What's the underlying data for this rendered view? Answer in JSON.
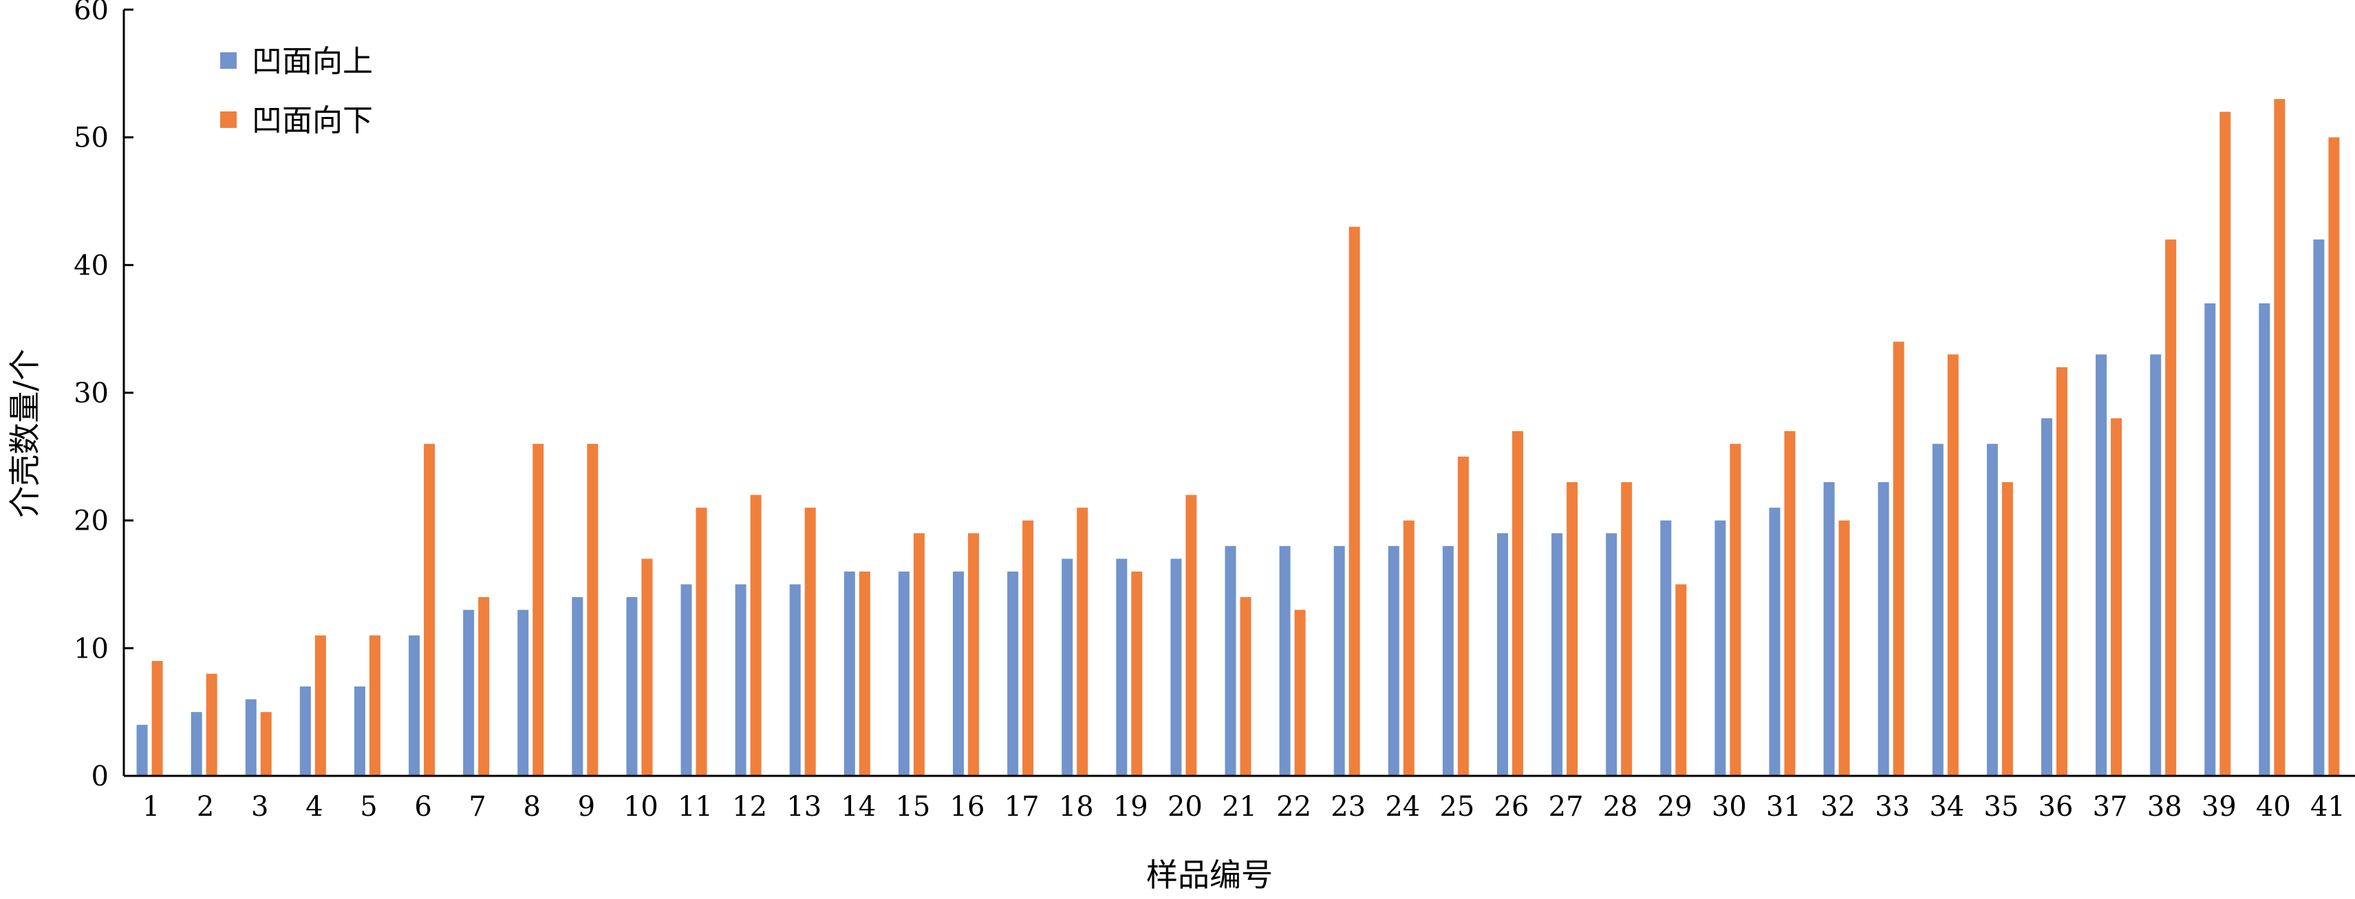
{
  "chart_data": {
    "type": "bar",
    "title": "",
    "xlabel": "样品编号",
    "ylabel": "介壳数量/个",
    "ylim": [
      0,
      60
    ],
    "yticks": [
      0,
      10,
      20,
      30,
      40,
      50,
      60
    ],
    "grid": false,
    "legend_position": "top-left",
    "categories": [
      "1",
      "2",
      "3",
      "4",
      "5",
      "6",
      "7",
      "8",
      "9",
      "10",
      "11",
      "12",
      "13",
      "14",
      "15",
      "16",
      "17",
      "18",
      "19",
      "20",
      "21",
      "22",
      "23",
      "24",
      "25",
      "26",
      "27",
      "28",
      "29",
      "30",
      "31",
      "32",
      "33",
      "34",
      "35",
      "36",
      "37",
      "38",
      "39",
      "40",
      "41"
    ],
    "series": [
      {
        "name": "凹面向上",
        "color": "#7293CB",
        "values": [
          4,
          5,
          6,
          7,
          7,
          11,
          13,
          13,
          14,
          14,
          15,
          15,
          15,
          16,
          16,
          16,
          16,
          17,
          17,
          17,
          18,
          18,
          18,
          18,
          18,
          19,
          19,
          19,
          20,
          20,
          21,
          23,
          23,
          26,
          26,
          28,
          33,
          33,
          37,
          37,
          42
        ]
      },
      {
        "name": "凹面向下",
        "color": "#F07F3C",
        "values": [
          9,
          8,
          5,
          11,
          11,
          26,
          14,
          26,
          26,
          17,
          21,
          22,
          21,
          16,
          19,
          19,
          20,
          21,
          16,
          22,
          14,
          13,
          43,
          20,
          25,
          27,
          23,
          23,
          15,
          26,
          27,
          20,
          34,
          33,
          23,
          32,
          28,
          42,
          52,
          53,
          50
        ]
      }
    ]
  }
}
